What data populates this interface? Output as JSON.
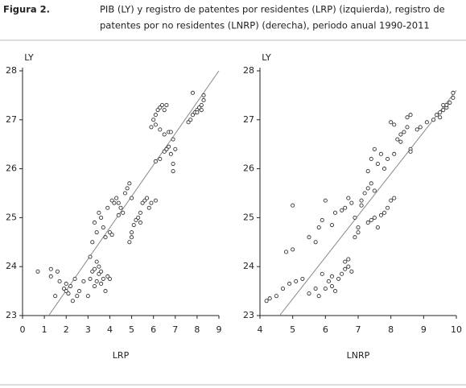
{
  "figure": {
    "label": "Figura 2.",
    "title_lines": [
      "PIB (LY) y registro de patentes por residentes (LRP) (izquierda), registro de",
      "patentes por no residentes (LNRP) (derecha), periodo anual 1990-2011"
    ]
  },
  "chart_data": [
    {
      "type": "scatter",
      "x_label": "LRP",
      "y_label": "LY",
      "color": "#333333",
      "x": [
        0.7,
        1.3,
        1.3,
        1.6,
        1.7,
        1.9,
        2.0,
        2.0,
        2.1,
        2.2,
        2.3,
        2.4,
        2.5,
        2.6,
        2.8,
        3.0,
        3.1,
        3.2,
        3.3,
        3.3,
        3.4,
        3.4,
        3.5,
        3.5,
        3.6,
        3.6,
        3.7,
        3.8,
        3.9,
        4.0,
        1.5,
        3.1,
        3.2,
        3.3,
        3.4,
        3.5,
        3.6,
        3.7,
        3.8,
        3.9,
        4.0,
        4.1,
        4.2,
        4.3,
        4.4,
        4.5,
        4.6,
        4.7,
        4.8,
        4.9,
        5.0,
        4.4,
        4.1,
        4.9,
        5.0,
        5.1,
        5.2,
        5.3,
        5.4,
        5.5,
        5.6,
        5.7,
        5.8,
        5.9,
        6.1,
        5.0,
        5.4,
        5.9,
        6.0,
        6.1,
        6.2,
        6.3,
        6.4,
        6.5,
        6.6,
        6.1,
        6.3,
        6.5,
        6.7,
        6.1,
        6.3,
        6.5,
        6.6,
        6.7,
        6.8,
        6.9,
        6.9,
        6.9,
        7.0,
        6.8,
        7.6,
        7.7,
        7.8,
        7.9,
        8.0,
        8.1,
        8.2,
        8.3,
        8.3,
        7.8,
        8.0,
        8.2
      ],
      "y": [
        23.9,
        23.95,
        23.8,
        23.9,
        23.7,
        23.55,
        23.5,
        23.65,
        23.45,
        23.6,
        23.3,
        23.75,
        23.4,
        23.5,
        23.7,
        23.4,
        23.75,
        23.9,
        23.95,
        23.6,
        24.1,
        23.7,
        23.85,
        24.0,
        23.65,
        23.9,
        23.75,
        23.5,
        23.8,
        23.75,
        23.4,
        24.2,
        24.5,
        24.9,
        24.7,
        25.1,
        25.0,
        24.8,
        24.6,
        25.2,
        24.7,
        25.35,
        25.3,
        25.4,
        25.3,
        25.2,
        25.1,
        25.5,
        25.6,
        25.7,
        25.4,
        25.05,
        24.65,
        24.5,
        24.7,
        24.85,
        24.95,
        25.0,
        25.1,
        25.3,
        25.35,
        25.4,
        25.2,
        25.3,
        25.35,
        24.6,
        24.9,
        26.85,
        27.0,
        27.1,
        27.2,
        27.25,
        27.3,
        27.2,
        27.3,
        26.9,
        26.8,
        26.7,
        26.75,
        26.15,
        26.2,
        26.35,
        26.4,
        26.45,
        26.3,
        26.6,
        26.1,
        25.95,
        26.4,
        26.75,
        26.95,
        27.0,
        27.1,
        27.15,
        27.2,
        27.25,
        27.3,
        27.4,
        27.5,
        27.55,
        27.15,
        27.2
      ],
      "fit_line": {
        "x": [
          1.2,
          9
        ],
        "y": [
          23,
          28
        ]
      },
      "xlim": [
        0,
        9
      ],
      "xticks": [
        0,
        1,
        2,
        3,
        4,
        5,
        6,
        7,
        8,
        9
      ],
      "ylim": [
        23,
        28
      ],
      "yticks": [
        23,
        24,
        25,
        26,
        27,
        28
      ]
    },
    {
      "type": "scatter",
      "x_label": "LNRP",
      "y_label": "LY",
      "color": "#333333",
      "x": [
        4.2,
        4.3,
        4.5,
        4.7,
        4.9,
        5.1,
        5.3,
        5.5,
        5.7,
        5.8,
        6.0,
        6.1,
        6.2,
        6.3,
        6.4,
        6.5,
        6.6,
        6.7,
        6.8,
        6.6,
        6.7,
        5.9,
        6.2,
        4.8,
        5.0,
        5.0,
        5.5,
        5.7,
        5.8,
        5.9,
        6.0,
        6.2,
        6.3,
        6.5,
        6.6,
        6.7,
        6.8,
        6.9,
        7.0,
        7.1,
        7.2,
        7.3,
        7.4,
        7.5,
        7.1,
        6.9,
        7.0,
        7.3,
        7.4,
        7.5,
        7.7,
        7.8,
        7.9,
        8.0,
        8.1,
        7.6,
        7.3,
        7.4,
        7.5,
        7.6,
        7.7,
        7.8,
        7.9,
        8.1,
        8.2,
        8.3,
        8.4,
        8.5,
        8.6,
        8.0,
        8.1,
        8.3,
        8.5,
        8.6,
        8.8,
        8.9,
        8.6,
        9.1,
        9.3,
        9.4,
        9.5,
        9.6,
        9.7,
        9.8,
        9.9,
        9.9,
        9.7,
        9.5,
        9.6
      ],
      "y": [
        23.3,
        23.35,
        23.4,
        23.55,
        23.65,
        23.7,
        23.75,
        23.45,
        23.55,
        23.4,
        23.55,
        23.7,
        23.8,
        23.5,
        23.75,
        23.85,
        23.95,
        24.0,
        23.9,
        24.1,
        24.15,
        23.85,
        23.6,
        24.3,
        24.35,
        25.25,
        24.6,
        24.5,
        24.8,
        24.95,
        25.35,
        24.85,
        25.1,
        25.15,
        25.2,
        25.4,
        25.3,
        25.0,
        24.8,
        25.35,
        25.5,
        25.6,
        25.7,
        25.55,
        25.25,
        24.6,
        24.7,
        24.9,
        24.95,
        25.0,
        25.05,
        25.1,
        25.2,
        25.35,
        25.4,
        24.8,
        25.95,
        26.2,
        26.4,
        26.1,
        26.3,
        26.0,
        26.2,
        26.3,
        26.6,
        26.55,
        26.75,
        26.85,
        26.4,
        26.95,
        26.9,
        26.7,
        27.05,
        27.1,
        26.8,
        26.85,
        26.35,
        26.95,
        27.0,
        27.1,
        27.15,
        27.2,
        27.25,
        27.35,
        27.45,
        27.55,
        27.3,
        27.05,
        27.3
      ],
      "fit_line": {
        "x": [
          4.6,
          10
        ],
        "y": [
          23,
          27.6
        ]
      },
      "xlim": [
        4,
        10
      ],
      "xticks": [
        4,
        5,
        6,
        7,
        8,
        9,
        10
      ],
      "ylim": [
        23,
        28
      ],
      "yticks": [
        23,
        24,
        25,
        26,
        27,
        28
      ]
    }
  ]
}
